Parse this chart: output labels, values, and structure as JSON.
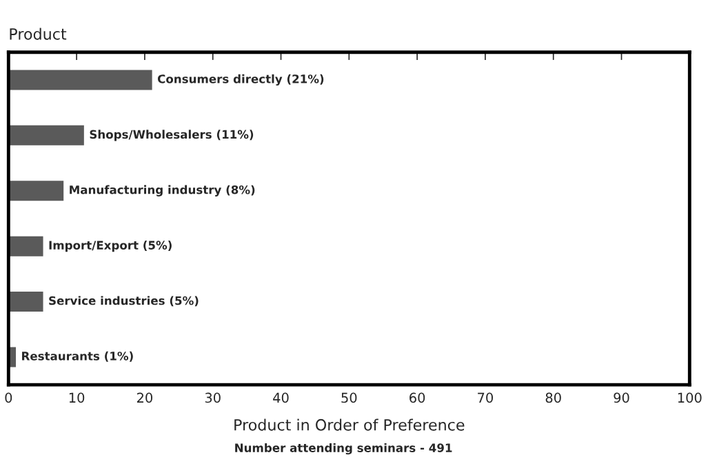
{
  "chart_data": {
    "type": "bar",
    "orientation": "horizontal",
    "ylabel": "Product",
    "xlabel": "Product in Order of Preference",
    "annotations": [
      "Number attending seminars - 491"
    ],
    "categories": [
      null,
      null,
      null,
      null,
      null,
      null
    ],
    "values": [
      21,
      11,
      8,
      5,
      5,
      1
    ],
    "value_labels": [
      "Consumers directly (21%)",
      "Shops/Wholesalers (11%)",
      "Manufacturing industry (8%)",
      "Import/Export (5%)",
      "Service industries (5%)",
      "Restaurants (1%)"
    ],
    "color": "#5a5a5a",
    "xlim": [
      0,
      100
    ],
    "xticks": [
      0,
      10,
      20,
      30,
      40,
      50,
      60,
      70,
      80,
      90,
      100
    ],
    "grid": false
  }
}
